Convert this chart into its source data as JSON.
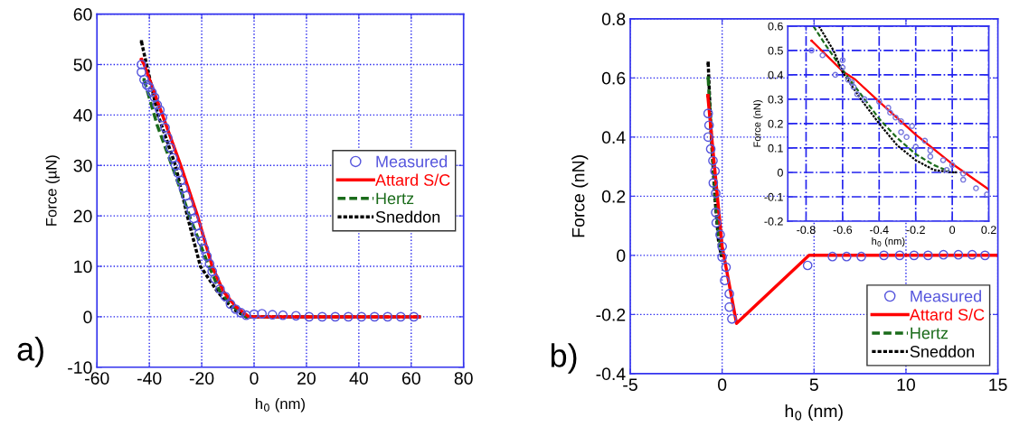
{
  "chart_data": [
    {
      "type": "line",
      "xlabel": "h$_{0}$ (nm)",
      "ylabel": "Force (µN)",
      "xlim": [
        -60,
        80
      ],
      "ylim": [
        -10,
        60
      ],
      "xticks": [
        -60,
        -40,
        -20,
        0,
        20,
        40,
        60,
        80
      ],
      "yticks": [
        -10,
        0,
        10,
        20,
        30,
        40,
        50,
        60
      ],
      "grid": true,
      "legend": "center right",
      "annotations": [
        "a)"
      ],
      "series": [
        {
          "name": "Measured",
          "type": "scatter",
          "marker": "circle",
          "color": "#5555dd",
          "x": [
            -43,
            -43,
            -42,
            -41,
            -40,
            -39,
            -38,
            -37,
            -36,
            -35,
            -34,
            -33,
            -32,
            -31,
            -30,
            -29,
            -28,
            -27,
            -26,
            -25,
            -24,
            -23,
            -22,
            -21,
            -20,
            -19,
            -18,
            -17,
            -16,
            -15,
            -13,
            -11,
            -9,
            -7,
            -5,
            -3,
            0,
            3,
            7,
            11,
            16,
            21,
            26,
            31,
            36,
            41,
            46,
            51,
            56,
            61
          ],
          "values": [
            50,
            48.5,
            47,
            46,
            45.5,
            44.5,
            43.5,
            42,
            41,
            39.5,
            37.5,
            35.5,
            33.5,
            31.5,
            30,
            28.5,
            27,
            25.5,
            24,
            22.5,
            21,
            19.5,
            18,
            16.5,
            15,
            13.5,
            12,
            10.5,
            9,
            7.5,
            5.5,
            4,
            2.5,
            1.5,
            0.8,
            0.3,
            0.5,
            0.6,
            0.4,
            0.3,
            0.2,
            0,
            0,
            0,
            0,
            0,
            0,
            0,
            0,
            0
          ]
        },
        {
          "name": "Attard S/C",
          "line_style": "solid",
          "color": "#ff0000",
          "x": [
            -43,
            -42,
            -35,
            -28,
            -21.6,
            -16,
            -11.7,
            -7,
            -2,
            63
          ],
          "values": [
            51,
            50,
            40,
            30,
            20,
            10,
            5,
            2,
            0,
            0
          ]
        },
        {
          "name": "Hertz",
          "line_style": "dashed",
          "color": "#1a6b1a",
          "x": [
            -42,
            -37,
            -30,
            -24,
            -18,
            -13,
            -8,
            -3,
            63
          ],
          "values": [
            47,
            38,
            28,
            19,
            11,
            5,
            2,
            0,
            0
          ]
        },
        {
          "name": "Sneddon",
          "line_style": "dotted",
          "color": "#000000",
          "x": [
            -43,
            -36.7,
            -30,
            -25.5,
            -20.5,
            -14,
            -8,
            -3,
            63
          ],
          "values": [
            54.5,
            40,
            30,
            20,
            10,
            5,
            1.5,
            0,
            0
          ]
        }
      ]
    },
    {
      "type": "line",
      "xlabel": "h$_{0}$ (nm)",
      "ylabel": "Force (nN)",
      "xlim": [
        -5,
        15
      ],
      "ylim": [
        -0.4,
        0.8
      ],
      "xticks": [
        -5,
        0,
        5,
        10,
        15
      ],
      "yticks": [
        -0.4,
        -0.2,
        0,
        0.2,
        0.4,
        0.6,
        0.8
      ],
      "grid": true,
      "legend": "lower right",
      "annotations": [
        "b)"
      ],
      "series": [
        {
          "name": "Measured",
          "type": "scatter",
          "marker": "circle",
          "color": "#5555dd",
          "x": [
            -0.76,
            -0.71,
            -0.76,
            -0.62,
            -0.5,
            -0.39,
            -0.48,
            -0.35,
            -0.35,
            -0.32,
            -0.11,
            0,
            0,
            0.21,
            0.14,
            0.39,
            0.39,
            0.53,
            4.65,
            6.0,
            6.77,
            7.57,
            8.8,
            9.66,
            10.44,
            11.2,
            12.04,
            12.85,
            13.6,
            14.3
          ],
          "values": [
            0.48,
            0.44,
            0.4,
            0.36,
            0.32,
            0.285,
            0.245,
            0.21,
            0.145,
            0.11,
            0.07,
            0.03,
            -0.006,
            -0.04,
            -0.085,
            -0.13,
            -0.175,
            -0.215,
            -0.034,
            -0.004,
            -0.004,
            -0.004,
            0,
            0,
            0,
            0,
            0.002,
            0.002,
            0.002,
            0
          ]
        },
        {
          "name": "Attard S/C",
          "line_style": "solid",
          "color": "#ff0000",
          "x": [
            -0.78,
            -0.4,
            0,
            0.78,
            4.73,
            15
          ],
          "values": [
            0.54,
            0.29,
            0.03,
            -0.23,
            0,
            0
          ]
        },
        {
          "name": "Hertz",
          "line_style": "dashed",
          "color": "#1a6b1a",
          "x": [
            -0.76,
            -0.6,
            -0.4,
            -0.2,
            -0.02
          ],
          "values": [
            0.6,
            0.42,
            0.22,
            0.075,
            0.005
          ]
        },
        {
          "name": "Sneddon",
          "line_style": "dotted",
          "color": "#000000",
          "x": [
            -0.76,
            -0.6,
            -0.4,
            -0.2,
            -0.05
          ],
          "values": [
            0.65,
            0.41,
            0.2,
            0.05,
            0
          ]
        }
      ]
    },
    {
      "type": "line",
      "xlabel": "h$_{0}$ (nm)",
      "ylabel": "Force (nN)",
      "xlim": [
        -0.9,
        0.2
      ],
      "ylim": [
        -0.2,
        0.6
      ],
      "xticks": [
        -0.8,
        -0.6,
        -0.4,
        -0.2,
        0,
        0.2
      ],
      "yticks": [
        -0.2,
        -0.1,
        0,
        0.1,
        0.2,
        0.3,
        0.4,
        0.5,
        0.6
      ],
      "grid": true,
      "series": [
        {
          "type": "scatter",
          "marker": "circle",
          "color": "#7777dd",
          "x": [
            -0.77,
            -0.71,
            -0.64,
            -0.6,
            -0.6,
            -0.57,
            -0.55,
            -0.54,
            -0.52,
            -0.48,
            -0.4,
            -0.35,
            -0.34,
            -0.31,
            -0.28,
            -0.28,
            -0.25,
            -0.22,
            -0.2,
            -0.15,
            -0.12,
            -0.12,
            -0.05,
            -0.03,
            0,
            0.06,
            0.06,
            0.13,
            0.19
          ],
          "values": [
            0.5,
            0.48,
            0.4,
            0.46,
            0.43,
            0.38,
            0.37,
            0.35,
            0.32,
            0.3,
            0.29,
            0.265,
            0.245,
            0.225,
            0.21,
            0.165,
            0.145,
            0.19,
            0.105,
            0.13,
            0.09,
            0.065,
            0.05,
            0.01,
            0.03,
            -0.005,
            -0.03,
            -0.065,
            -0.09
          ]
        },
        {
          "line_style": "solid",
          "color": "#ff0000",
          "x": [
            -0.77,
            -0.6,
            -0.53,
            -0.4,
            -0.2,
            0,
            0.2
          ],
          "values": [
            0.54,
            0.415,
            0.38,
            0.29,
            0.155,
            0.035,
            -0.07
          ]
        },
        {
          "line_style": "dashed",
          "color": "#1a6b1a",
          "x": [
            -0.76,
            -0.7,
            -0.6,
            -0.5,
            -0.4,
            -0.3,
            -0.2,
            -0.1,
            -0.02
          ],
          "values": [
            0.6,
            0.53,
            0.42,
            0.32,
            0.22,
            0.14,
            0.075,
            0.03,
            0.005
          ]
        },
        {
          "line_style": "dotted",
          "color": "#000000",
          "x": [
            -0.73,
            -0.65,
            -0.6,
            -0.5,
            -0.4,
            -0.3,
            -0.2,
            -0.1,
            0,
            0.02
          ],
          "values": [
            0.6,
            0.5,
            0.41,
            0.3,
            0.2,
            0.11,
            0.05,
            0.01,
            0,
            0
          ]
        }
      ]
    }
  ]
}
